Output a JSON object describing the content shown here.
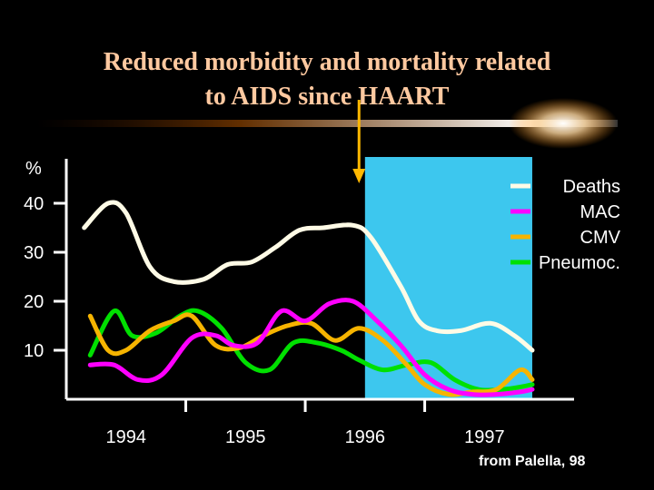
{
  "slide": {
    "title_line1": "Reduced morbidity and mortality related",
    "title_line2": "to AIDS since HAART",
    "source_note": "from Palella, 98"
  },
  "colors": {
    "background": "#000000",
    "title": "#ffc9a0",
    "highlight": "#3dc7ee",
    "arrow": "#ffb800",
    "axis": "#ffffff"
  },
  "chart_data": {
    "type": "line",
    "title": "",
    "ylabel": "%",
    "xlabel": "",
    "ylim": [
      0,
      50
    ],
    "xlim": [
      1993.5,
      1997.75
    ],
    "yticks": [
      10,
      20,
      30,
      40
    ],
    "ytick_labels": [
      "10",
      "20",
      "30",
      "40"
    ],
    "xticks": [
      1994.5,
      1995.5,
      1996.5
    ],
    "xtick_labels": [
      "1994",
      "1995",
      "1996",
      "1997"
    ],
    "highlight_range": [
      1996.0,
      1997.4
    ],
    "arrow_at_x": 1995.95,
    "legend_position": "top-right",
    "series": [
      {
        "name": "Deaths",
        "color": "#fffbe6",
        "x": [
          1993.65,
          1993.85,
          1994.0,
          1994.2,
          1994.4,
          1994.65,
          1994.85,
          1995.05,
          1995.25,
          1995.45,
          1995.65,
          1995.9,
          1996.05,
          1996.3,
          1996.45,
          1996.6,
          1996.8,
          1997.05,
          1997.25,
          1997.4
        ],
        "y": [
          35,
          40,
          38,
          27,
          24,
          24.5,
          27.5,
          28,
          31,
          34.5,
          35,
          35.5,
          33,
          23,
          16,
          14,
          14,
          15.5,
          13,
          10
        ]
      },
      {
        "name": "MAC",
        "color": "#ff00ff",
        "x": [
          1993.7,
          1993.9,
          1994.1,
          1994.3,
          1994.55,
          1994.75,
          1994.9,
          1995.1,
          1995.3,
          1995.5,
          1995.7,
          1995.9,
          1996.1,
          1996.3,
          1996.5,
          1996.7,
          1996.9,
          1997.1,
          1997.3,
          1997.4
        ],
        "y": [
          7,
          7,
          4,
          5,
          12.5,
          13,
          11,
          11.5,
          18,
          16,
          19.5,
          20,
          16,
          11,
          5,
          2,
          1,
          1,
          1.5,
          2
        ]
      },
      {
        "name": "CMV",
        "color": "#f6b400",
        "x": [
          1993.7,
          1993.85,
          1994.0,
          1994.2,
          1994.4,
          1994.55,
          1994.75,
          1994.95,
          1995.15,
          1995.35,
          1995.55,
          1995.75,
          1995.95,
          1996.15,
          1996.35,
          1996.5,
          1996.7,
          1996.9,
          1997.1,
          1997.3,
          1997.4
        ],
        "y": [
          17,
          10,
          10,
          14,
          16,
          17,
          11,
          10.5,
          13,
          15,
          15.5,
          12,
          14.5,
          12,
          7,
          3,
          1,
          1.5,
          2,
          6,
          4
        ]
      },
      {
        "name": "Pneumoc.",
        "color": "#00e000",
        "x": [
          1993.7,
          1993.9,
          1994.05,
          1994.25,
          1994.45,
          1994.6,
          1994.8,
          1995.0,
          1995.2,
          1995.4,
          1995.6,
          1995.8,
          1995.95,
          1996.15,
          1996.35,
          1996.55,
          1996.75,
          1996.95,
          1997.15,
          1997.3,
          1997.4
        ],
        "y": [
          9,
          18,
          13,
          13.5,
          17,
          18,
          14.5,
          7.5,
          6,
          11.5,
          11.5,
          10,
          8,
          6,
          7,
          7.5,
          4,
          2,
          2,
          2.5,
          3
        ]
      }
    ]
  }
}
